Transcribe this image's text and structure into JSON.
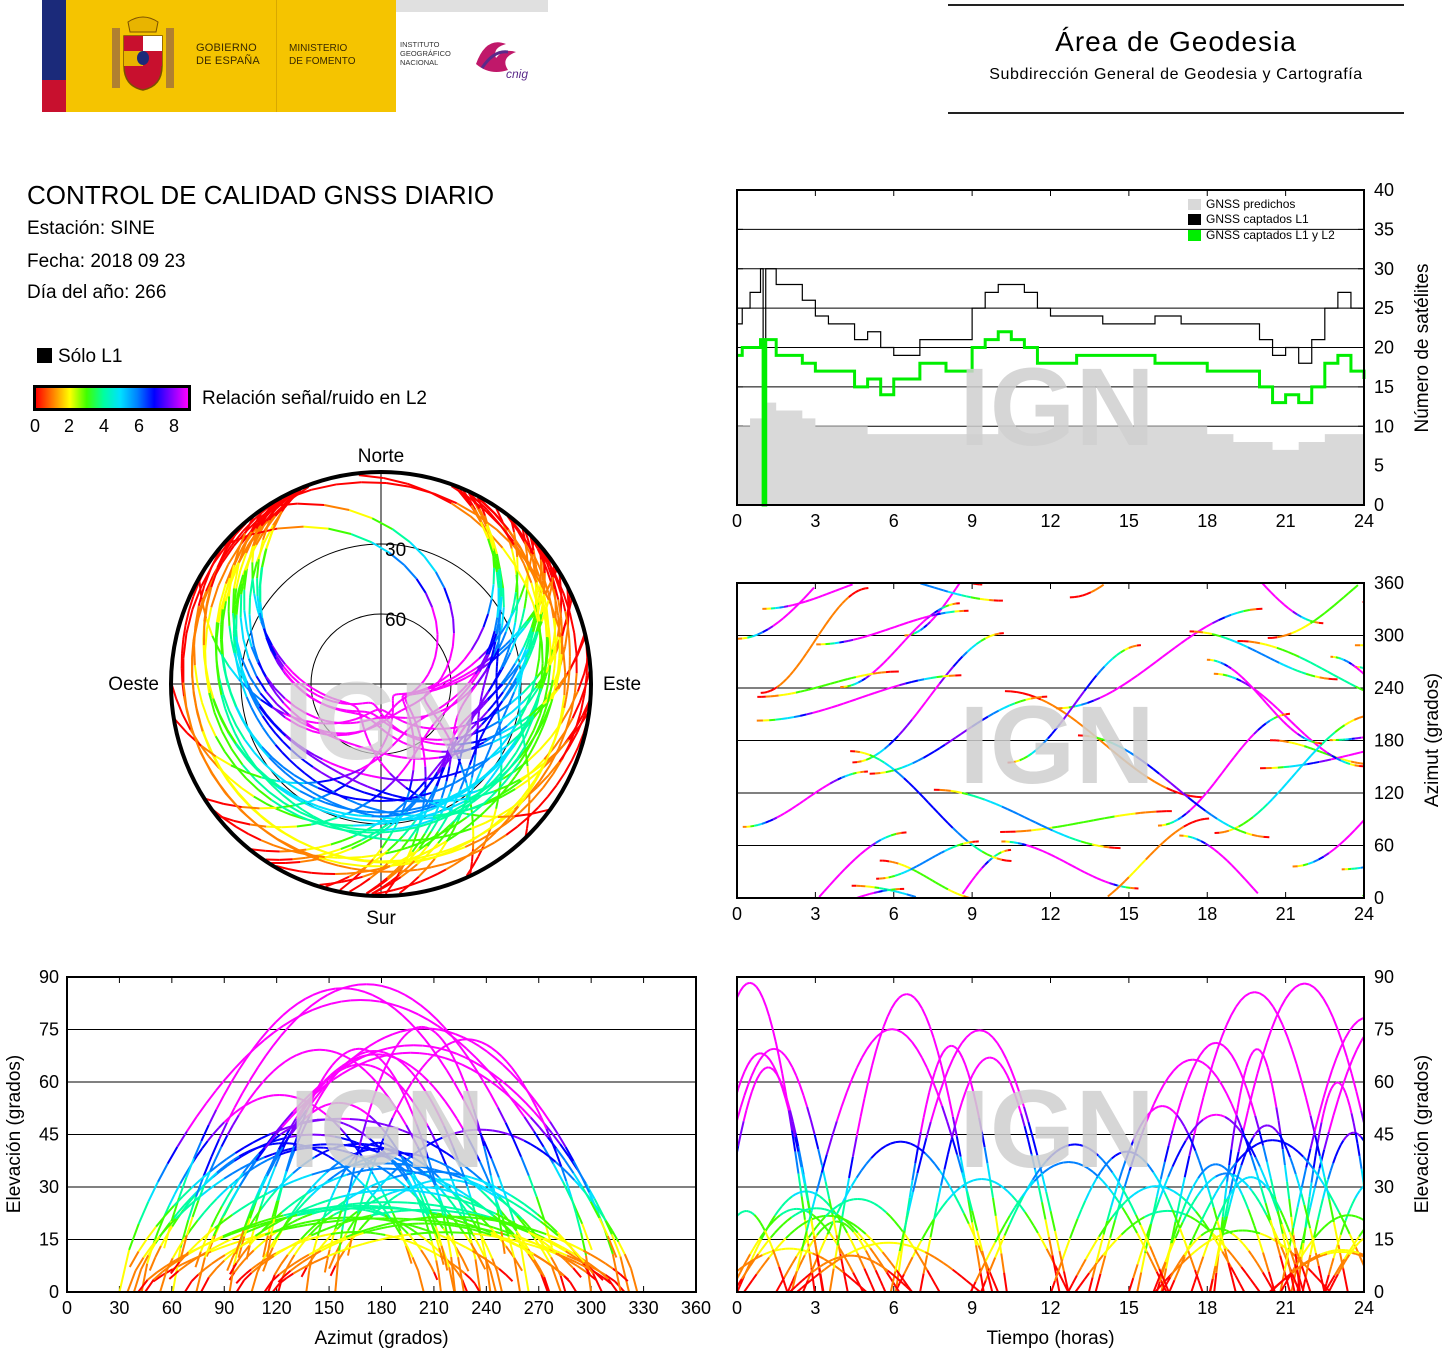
{
  "header": {
    "gobierno_line1": "GOBIERNO",
    "gobierno_line2": "DE ESPAÑA",
    "ministerio_line1": "MINISTERIO",
    "ministerio_line2": "DE FOMENTO",
    "instituto_line1": "INSTITUTO",
    "instituto_line2": "GEOGRÁFICO",
    "instituto_line3": "NACIONAL",
    "cnig_logo": "cnig",
    "area_title": "Área de Geodesia",
    "area_subtitle": "Subdirección General de Geodesia y Cartografía"
  },
  "report": {
    "title": "CONTROL DE CALIDAD GNSS DIARIO",
    "station": "Estación: SINE",
    "date": "Fecha: 2018 09 23",
    "doy": "Día del año: 266"
  },
  "legend": {
    "l1_only": "Sólo L1",
    "snr_label": "Relación señal/ruido en L2",
    "ticks": [
      "0",
      "2",
      "4",
      "6",
      "8"
    ]
  },
  "watermark": "IGN",
  "colors": {
    "predicted": "#d9d9d9",
    "l1": "#000000",
    "l1l2": "#00ee00",
    "snr_scale": [
      "#ff0000",
      "#ff8000",
      "#ffff00",
      "#40ff00",
      "#00ffa0",
      "#00e0ff",
      "#0080ff",
      "#0000ff",
      "#8000ff",
      "#ff00ff"
    ]
  },
  "chart_data": [
    {
      "type": "line",
      "id": "satellites",
      "ylabel": "Número de satélites",
      "xlim": [
        0,
        24
      ],
      "ylim": [
        0,
        40
      ],
      "xticks": [
        "0",
        "3",
        "6",
        "9",
        "12",
        "15",
        "18",
        "21",
        "24"
      ],
      "yticks": [
        "0",
        "5",
        "10",
        "15",
        "20",
        "25",
        "30",
        "35",
        "40"
      ],
      "grid": true,
      "legend_position": "top-right",
      "series": [
        {
          "name": "GNSS predichos",
          "style": "filled-step",
          "x": [
            0,
            0.5,
            1.0,
            1.5,
            2.5,
            3.0,
            5.0,
            8.0,
            10.0,
            13.0,
            16.0,
            18.0,
            19.0,
            20.5,
            21.5,
            22.5,
            24
          ],
          "y": [
            10,
            11,
            13,
            12,
            11,
            10,
            9,
            9,
            10,
            10,
            10,
            9,
            8,
            7,
            8,
            9,
            9
          ]
        },
        {
          "name": "GNSS captados L1",
          "style": "step",
          "x": [
            0,
            0.2,
            0.5,
            0.9,
            1.0,
            1.1,
            1.5,
            2.5,
            3.0,
            3.5,
            4.5,
            5.0,
            5.5,
            6.0,
            7.0,
            8.0,
            9.0,
            9.5,
            10.0,
            10.5,
            11.0,
            11.5,
            12.0,
            13.0,
            14.0,
            15.0,
            16.0,
            17.0,
            18.0,
            19.0,
            20.0,
            20.5,
            21.0,
            21.5,
            22.0,
            22.5,
            23.0,
            23.5,
            24
          ],
          "y": [
            23,
            25,
            27,
            30,
            0,
            30,
            28,
            26,
            24,
            23,
            21,
            22,
            20,
            19,
            21,
            21,
            25,
            27,
            28,
            28,
            27,
            25,
            24,
            24,
            23,
            23,
            24,
            23,
            23,
            23,
            21,
            19,
            20,
            18,
            21,
            25,
            27,
            25,
            23
          ]
        },
        {
          "name": "GNSS captados L1 y L2",
          "style": "step",
          "x": [
            0,
            0.2,
            0.5,
            0.9,
            1.0,
            1.1,
            1.5,
            2.5,
            3.0,
            3.5,
            4.5,
            5.0,
            5.5,
            6.0,
            7.0,
            8.0,
            9.0,
            9.5,
            10.0,
            10.5,
            11.0,
            11.5,
            12.0,
            13.0,
            14.0,
            15.0,
            16.0,
            17.0,
            18.0,
            19.0,
            20.0,
            20.5,
            21.0,
            21.5,
            22.0,
            22.5,
            23.0,
            23.5,
            24
          ],
          "y": [
            19,
            20,
            20,
            21,
            0,
            21,
            19,
            18,
            17,
            17,
            15,
            16,
            14,
            16,
            18,
            17,
            20,
            21,
            22,
            21,
            20,
            18,
            18,
            19,
            19,
            19,
            18,
            18,
            17,
            17,
            15,
            13,
            14,
            13,
            15,
            18,
            19,
            17,
            16
          ]
        }
      ]
    },
    {
      "type": "scatter",
      "id": "skyplot",
      "projection": "polar",
      "cardinals": [
        "Norte",
        "Este",
        "Sur",
        "Oeste"
      ],
      "rings": [
        "30",
        "60"
      ]
    },
    {
      "type": "scatter",
      "id": "azimuth-time",
      "ylabel": "Azimut (grados)",
      "xlim": [
        0,
        24
      ],
      "ylim": [
        0,
        360
      ],
      "xticks": [
        "0",
        "3",
        "6",
        "9",
        "12",
        "15",
        "18",
        "21",
        "24"
      ],
      "yticks": [
        "0",
        "60",
        "120",
        "180",
        "240",
        "300",
        "360"
      ],
      "grid": true
    },
    {
      "type": "scatter",
      "id": "elevation-azimuth",
      "xlabel": "Azimut (grados)",
      "ylabel": "Elevación (grados)",
      "xlim": [
        0,
        360
      ],
      "ylim": [
        0,
        90
      ],
      "xticks": [
        "0",
        "30",
        "60",
        "90",
        "120",
        "150",
        "180",
        "210",
        "240",
        "270",
        "300",
        "330",
        "360"
      ],
      "yticks": [
        "0",
        "15",
        "30",
        "45",
        "60",
        "75",
        "90"
      ],
      "grid": true
    },
    {
      "type": "scatter",
      "id": "elevation-time",
      "xlabel": "Tiempo (horas)",
      "ylabel": "Elevación (grados)",
      "xlim": [
        0,
        24
      ],
      "ylim": [
        0,
        90
      ],
      "xticks": [
        "0",
        "3",
        "6",
        "9",
        "12",
        "15",
        "18",
        "21",
        "24"
      ],
      "yticks": [
        "0",
        "15",
        "30",
        "45",
        "60",
        "75",
        "90"
      ],
      "grid": true
    }
  ]
}
